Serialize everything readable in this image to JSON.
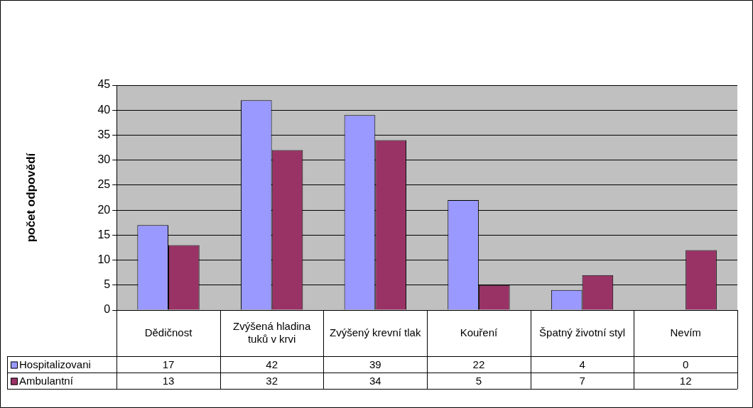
{
  "chart_data": {
    "type": "bar",
    "ylabel": "počet odpovědí",
    "categories": [
      "Dědičnost",
      "Zvýšená hladina tuků v krvi",
      "Zvýšený krevní tlak",
      "Kouření",
      "Špatný životní styl",
      "Nevím"
    ],
    "series": [
      {
        "name": "Hospitalizovani",
        "color": "#9999ff",
        "values": [
          17,
          42,
          39,
          22,
          4,
          0
        ]
      },
      {
        "name": "Ambulantní",
        "color": "#993366",
        "values": [
          13,
          32,
          34,
          5,
          7,
          12
        ]
      }
    ],
    "ylim": [
      0,
      45
    ],
    "yticks": [
      0,
      5,
      10,
      15,
      20,
      25,
      30,
      35,
      40,
      45
    ],
    "grid": "y",
    "legend": "bottom left",
    "data_labels": true
  }
}
